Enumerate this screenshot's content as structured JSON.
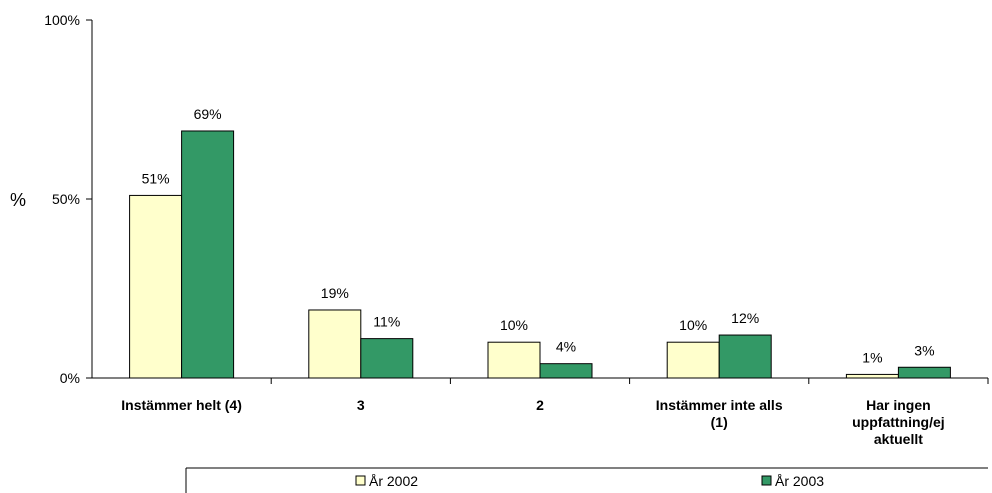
{
  "chart_data": {
    "type": "bar",
    "ylabel": "%",
    "ylim": [
      0,
      100
    ],
    "yticks": [
      "0%",
      "50%",
      "100%"
    ],
    "categories": [
      [
        "Instämmer helt (4)"
      ],
      [
        "3"
      ],
      [
        "2"
      ],
      [
        "Instämmer inte alls",
        "(1)"
      ],
      [
        "Har ingen",
        "uppfattning/ej",
        "aktuellt"
      ]
    ],
    "series": [
      {
        "name": "År 2002",
        "color": "#ffffcc",
        "values": [
          51,
          19,
          10,
          10,
          1
        ],
        "labels": [
          "51%",
          "19%",
          "10%",
          "10%",
          "1%"
        ]
      },
      {
        "name": "År 2003",
        "color": "#339966",
        "values": [
          69,
          11,
          4,
          12,
          3
        ],
        "labels": [
          "69%",
          "11%",
          "4%",
          "12%",
          "3%"
        ]
      }
    ],
    "legend_position": "bottom"
  }
}
